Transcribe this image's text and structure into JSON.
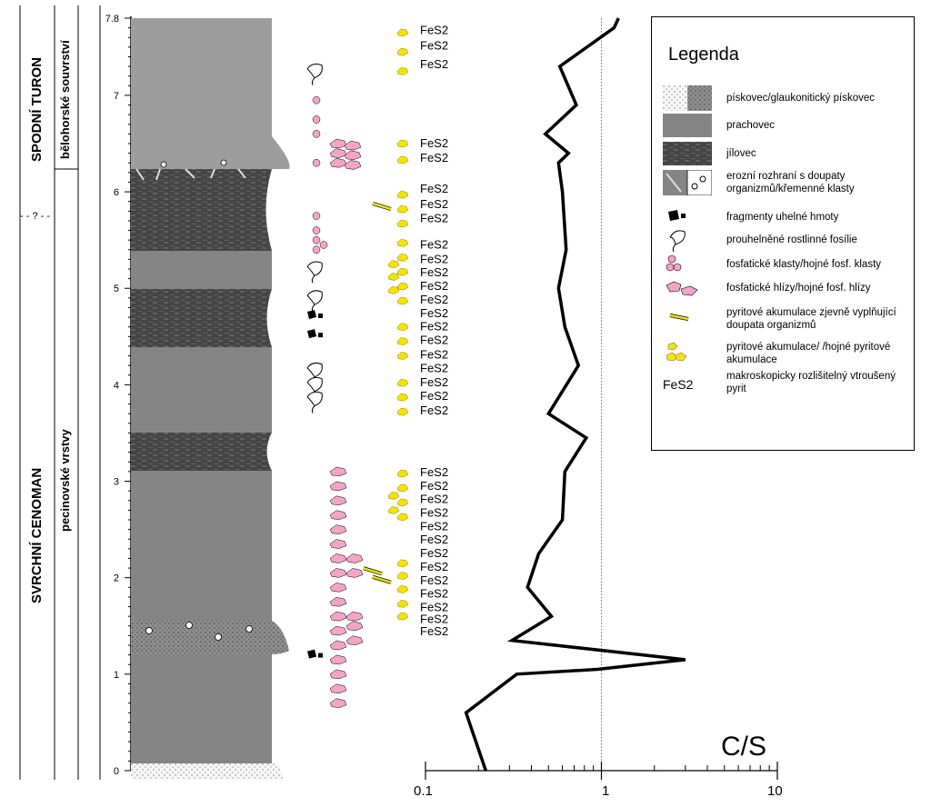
{
  "stratigraphy": {
    "stage_upper": "SPODNÍ TURON",
    "stage_lower": "SVRCHNÍ CENOMAN",
    "unit_upper": "bělohorské souvrství",
    "unit_lower": "pecinovské vrstvy",
    "uncertain_mark": "- - ? - -"
  },
  "depth_axis": {
    "ticks": [
      "0",
      "1",
      "2",
      "3",
      "4",
      "5",
      "6",
      "7",
      "7.8"
    ]
  },
  "legend": {
    "title": "Legenda",
    "items": [
      {
        "id": "sandstone",
        "text": "pískovec/glaukonitický pískovec"
      },
      {
        "id": "siltstone",
        "text": "prachovec"
      },
      {
        "id": "claystone",
        "text": "jílovec"
      },
      {
        "id": "erosion",
        "text": "erozní rozhraní s doupaty organizmů/křemenné klasty"
      },
      {
        "id": "coal",
        "text": "fragmenty uhelné hmoty"
      },
      {
        "id": "plant",
        "text": "prouhelněné rostlinné fosílie"
      },
      {
        "id": "phos-clasts",
        "text": "fosfatické klasty/hojné fosf. klasty"
      },
      {
        "id": "phos-nodules",
        "text": "fosfatické hlízy/hojné fosf. hlízy"
      },
      {
        "id": "pyrite-burrows",
        "text": "pyritové akumulace zjevně vyplňující doupata organizmů"
      },
      {
        "id": "pyrite-acc",
        "text": "pyritové akumulace/ /hojné pyritové akumulace"
      },
      {
        "id": "fes2",
        "text": "makroskopicky rozlišitelný vtroušený pyrit"
      }
    ]
  },
  "fes2_label": "FeS2",
  "chart_data": {
    "type": "line",
    "xlabel": "C/S",
    "x_scale": "log",
    "xlim": [
      0.1,
      10
    ],
    "x_ticks": [
      "0.1",
      "1",
      "10"
    ],
    "ylim": [
      0,
      7.8
    ],
    "reference_line_x": 1,
    "series": [
      {
        "points": [
          [
            0.22,
            0
          ],
          [
            0.17,
            0.6
          ],
          [
            0.33,
            1.0
          ],
          [
            0.95,
            1.05
          ],
          [
            3.0,
            1.15
          ],
          [
            0.31,
            1.35
          ],
          [
            0.52,
            1.6
          ],
          [
            0.38,
            1.9
          ],
          [
            0.44,
            2.25
          ],
          [
            0.6,
            2.6
          ],
          [
            0.62,
            3.1
          ],
          [
            0.82,
            3.45
          ],
          [
            0.5,
            3.7
          ],
          [
            0.74,
            4.2
          ],
          [
            0.62,
            4.6
          ],
          [
            0.57,
            5.0
          ],
          [
            0.63,
            5.4
          ],
          [
            0.6,
            6.0
          ],
          [
            0.57,
            6.3
          ],
          [
            0.65,
            6.4
          ],
          [
            0.48,
            6.6
          ],
          [
            0.72,
            6.9
          ],
          [
            0.58,
            7.3
          ],
          [
            1.18,
            7.7
          ],
          [
            1.25,
            7.8
          ]
        ]
      }
    ]
  }
}
